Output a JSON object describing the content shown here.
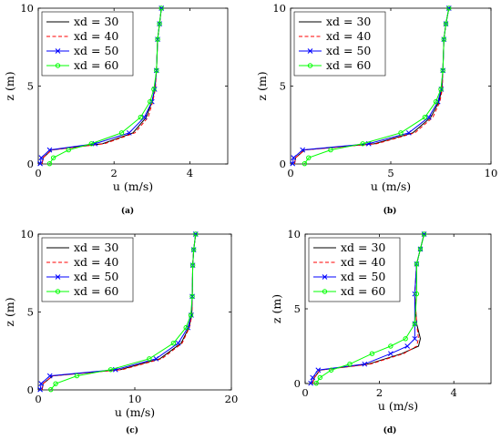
{
  "colors": {
    "xd30": "#000000",
    "xd40": "#ff0000",
    "xd50": "#0000ff",
    "xd60": "#00ff00"
  },
  "chart_data": [
    {
      "type": "line",
      "caption": "(a)",
      "xlabel": "u (m/s)",
      "ylabel": "z (m)",
      "xlim": [
        0,
        5
      ],
      "ylim": [
        0,
        10
      ],
      "xticks": [
        0,
        2,
        4
      ],
      "yticks": [
        0,
        5,
        10
      ],
      "grid": false,
      "legend": "top-left",
      "series": [
        {
          "name": "xd = 30",
          "style": "solid",
          "marker": "none",
          "x": [
            0.1,
            0.13,
            0.35,
            1.7,
            2.5,
            2.85,
            3.0,
            3.08,
            3.12,
            3.15,
            3.2,
            3.25
          ],
          "y": [
            0.02,
            0.4,
            0.9,
            1.3,
            2.0,
            3.0,
            4.0,
            4.8,
            6.0,
            8.0,
            9.0,
            10.0
          ]
        },
        {
          "name": "xd = 40",
          "style": "dashed",
          "marker": "none",
          "x": [
            0.1,
            0.13,
            0.35,
            1.75,
            2.55,
            2.9,
            3.02,
            3.09,
            3.12,
            3.15,
            3.2,
            3.25
          ],
          "y": [
            0.02,
            0.4,
            0.9,
            1.3,
            2.0,
            3.0,
            4.0,
            4.8,
            6.0,
            8.0,
            9.0,
            10.0
          ]
        },
        {
          "name": "xd = 50",
          "style": "solid",
          "marker": "x",
          "x": [
            0.05,
            0.08,
            0.3,
            1.5,
            2.4,
            2.8,
            3.0,
            3.07,
            3.12,
            3.15,
            3.2,
            3.25
          ],
          "y": [
            0.02,
            0.4,
            0.9,
            1.3,
            2.0,
            3.0,
            4.0,
            4.8,
            6.0,
            8.0,
            9.0,
            10.0
          ]
        },
        {
          "name": "xd = 60",
          "style": "solid",
          "marker": "o",
          "x": [
            0.3,
            0.4,
            0.8,
            1.4,
            2.2,
            2.7,
            2.95,
            3.05,
            3.12,
            3.15,
            3.2,
            3.25
          ],
          "y": [
            0.02,
            0.4,
            0.9,
            1.3,
            2.0,
            3.0,
            4.0,
            4.8,
            6.0,
            8.0,
            9.0,
            10.0
          ]
        }
      ]
    },
    {
      "type": "line",
      "caption": "(b)",
      "xlabel": "u (m/s)",
      "ylabel": "z (m)",
      "xlim": [
        0,
        10
      ],
      "ylim": [
        0,
        10
      ],
      "xticks": [
        0,
        5,
        10
      ],
      "yticks": [
        0,
        5,
        10
      ],
      "grid": false,
      "legend": "top-left",
      "series": [
        {
          "name": "xd = 30",
          "style": "solid",
          "marker": "none",
          "x": [
            0.2,
            0.25,
            0.7,
            4.2,
            6.1,
            7.0,
            7.4,
            7.55,
            7.6,
            7.65,
            7.75,
            7.9
          ],
          "y": [
            0.02,
            0.4,
            0.9,
            1.3,
            2.0,
            3.0,
            4.0,
            4.8,
            6.0,
            8.0,
            9.0,
            10.0
          ]
        },
        {
          "name": "xd = 40",
          "style": "dashed",
          "marker": "none",
          "x": [
            0.2,
            0.25,
            0.7,
            4.3,
            6.2,
            7.1,
            7.45,
            7.57,
            7.6,
            7.65,
            7.75,
            7.9
          ],
          "y": [
            0.02,
            0.4,
            0.9,
            1.3,
            2.0,
            3.0,
            4.0,
            4.8,
            6.0,
            8.0,
            9.0,
            10.0
          ]
        },
        {
          "name": "xd = 50",
          "style": "solid",
          "marker": "x",
          "x": [
            0.1,
            0.15,
            0.6,
            3.9,
            5.9,
            6.9,
            7.35,
            7.52,
            7.6,
            7.65,
            7.75,
            7.9
          ],
          "y": [
            0.02,
            0.4,
            0.9,
            1.3,
            2.0,
            3.0,
            4.0,
            4.8,
            6.0,
            8.0,
            9.0,
            10.0
          ]
        },
        {
          "name": "xd = 60",
          "style": "solid",
          "marker": "o",
          "x": [
            0.7,
            0.9,
            2.0,
            3.6,
            5.5,
            6.7,
            7.25,
            7.5,
            7.6,
            7.65,
            7.75,
            7.9
          ],
          "y": [
            0.02,
            0.4,
            0.9,
            1.3,
            2.0,
            3.0,
            4.0,
            4.8,
            6.0,
            8.0,
            9.0,
            10.0
          ]
        }
      ]
    },
    {
      "type": "line",
      "caption": "(c)",
      "xlabel": "u (m/s)",
      "ylabel": "z (m)",
      "xlim": [
        0,
        20
      ],
      "ylim": [
        0,
        10
      ],
      "xticks": [
        0,
        10,
        20
      ],
      "yticks": [
        0,
        5,
        10
      ],
      "grid": false,
      "legend": "top-left",
      "series": [
        {
          "name": "xd = 30",
          "style": "solid",
          "marker": "none",
          "x": [
            0.4,
            0.5,
            1.5,
            8.5,
            12.6,
            14.8,
            15.6,
            15.9,
            15.95,
            16.0,
            16.1,
            16.3
          ],
          "y": [
            0.02,
            0.4,
            0.9,
            1.3,
            2.0,
            3.0,
            4.0,
            4.8,
            6.0,
            8.0,
            9.0,
            10.0
          ]
        },
        {
          "name": "xd = 40",
          "style": "dashed",
          "marker": "none",
          "x": [
            0.4,
            0.5,
            1.5,
            8.7,
            12.8,
            14.9,
            15.65,
            15.92,
            15.95,
            16.0,
            16.1,
            16.3
          ],
          "y": [
            0.02,
            0.4,
            0.9,
            1.3,
            2.0,
            3.0,
            4.0,
            4.8,
            6.0,
            8.0,
            9.0,
            10.0
          ]
        },
        {
          "name": "xd = 50",
          "style": "solid",
          "marker": "x",
          "x": [
            0.2,
            0.3,
            1.2,
            8.0,
            12.2,
            14.5,
            15.5,
            15.85,
            15.95,
            16.0,
            16.1,
            16.3
          ],
          "y": [
            0.02,
            0.4,
            0.9,
            1.3,
            2.0,
            3.0,
            4.0,
            4.8,
            6.0,
            8.0,
            9.0,
            10.0
          ]
        },
        {
          "name": "xd = 60",
          "style": "solid",
          "marker": "o",
          "x": [
            1.3,
            1.8,
            4.0,
            7.5,
            11.5,
            14.0,
            15.3,
            15.8,
            15.95,
            16.0,
            16.1,
            16.3
          ],
          "y": [
            0.02,
            0.4,
            0.9,
            1.3,
            2.0,
            3.0,
            4.0,
            4.8,
            6.0,
            8.0,
            9.0,
            10.0
          ]
        }
      ]
    },
    {
      "type": "line",
      "caption": "(d)",
      "xlabel": "u (m/s)",
      "ylabel": "z (m)",
      "xlim": [
        0,
        5
      ],
      "ylim": [
        0,
        10
      ],
      "xticks": [
        0,
        2,
        4
      ],
      "yticks": [
        0,
        5,
        10
      ],
      "grid": false,
      "legend": "top-left",
      "series": [
        {
          "name": "xd = 30",
          "style": "solid",
          "marker": "none",
          "x": [
            0.2,
            0.25,
            0.4,
            1.7,
            2.6,
            3.05,
            3.1,
            3.0,
            2.95,
            3.0,
            3.1,
            3.2
          ],
          "y": [
            0.02,
            0.4,
            0.9,
            1.3,
            2.0,
            2.5,
            3.0,
            4.0,
            6.0,
            8.0,
            9.0,
            10.0
          ]
        },
        {
          "name": "xd = 40",
          "style": "dashed",
          "marker": "none",
          "x": [
            0.2,
            0.25,
            0.4,
            1.75,
            2.65,
            3.0,
            3.05,
            3.0,
            2.95,
            3.0,
            3.1,
            3.2
          ],
          "y": [
            0.02,
            0.4,
            0.9,
            1.3,
            2.0,
            2.5,
            3.0,
            4.0,
            6.0,
            8.0,
            9.0,
            10.0
          ]
        },
        {
          "name": "xd = 50",
          "style": "solid",
          "marker": "x",
          "x": [
            0.15,
            0.2,
            0.35,
            1.6,
            2.3,
            2.75,
            2.95,
            2.95,
            2.95,
            3.0,
            3.1,
            3.2
          ],
          "y": [
            0.02,
            0.4,
            0.9,
            1.3,
            2.0,
            2.5,
            3.0,
            4.0,
            6.0,
            8.0,
            9.0,
            10.0
          ]
        },
        {
          "name": "xd = 60",
          "style": "solid",
          "marker": "o",
          "x": [
            0.3,
            0.4,
            0.7,
            1.2,
            1.8,
            2.3,
            2.7,
            2.95,
            3.0,
            3.0,
            3.1,
            3.2
          ],
          "y": [
            0.02,
            0.4,
            0.9,
            1.3,
            2.0,
            2.5,
            3.0,
            4.0,
            6.0,
            8.0,
            9.0,
            10.0
          ]
        }
      ]
    }
  ]
}
